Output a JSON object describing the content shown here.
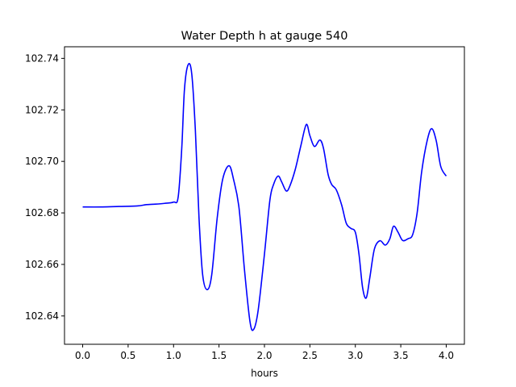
{
  "chart_data": {
    "type": "line",
    "title": "Water Depth h at gauge 540",
    "xlabel": "hours",
    "ylabel": "",
    "xlim": [
      -0.2,
      4.2
    ],
    "ylim": [
      102.629,
      102.7445
    ],
    "grid": false,
    "colors": {
      "line": "#0000ff",
      "axes": "#000000",
      "background": "#ffffff"
    },
    "xticks": [
      {
        "value": 0.0,
        "label": "0.0"
      },
      {
        "value": 0.5,
        "label": "0.5"
      },
      {
        "value": 1.0,
        "label": "1.0"
      },
      {
        "value": 1.5,
        "label": "1.5"
      },
      {
        "value": 2.0,
        "label": "2.0"
      },
      {
        "value": 2.5,
        "label": "2.5"
      },
      {
        "value": 3.0,
        "label": "3.0"
      },
      {
        "value": 3.5,
        "label": "3.5"
      },
      {
        "value": 4.0,
        "label": "4.0"
      }
    ],
    "yticks": [
      {
        "value": 102.64,
        "label": "102.64"
      },
      {
        "value": 102.66,
        "label": "102.66"
      },
      {
        "value": 102.68,
        "label": "102.68"
      },
      {
        "value": 102.7,
        "label": "102.70"
      },
      {
        "value": 102.72,
        "label": "102.72"
      },
      {
        "value": 102.74,
        "label": "102.74"
      }
    ],
    "series": [
      {
        "points": [
          [
            0.0,
            102.6823
          ],
          [
            0.2,
            102.6823
          ],
          [
            0.4,
            102.6825
          ],
          [
            0.6,
            102.6827
          ],
          [
            0.7,
            102.6832
          ],
          [
            0.8,
            102.6834
          ],
          [
            0.9,
            102.6837
          ],
          [
            1.0,
            102.6842
          ],
          [
            1.05,
            102.686
          ],
          [
            1.09,
            102.705
          ],
          [
            1.12,
            102.728
          ],
          [
            1.16,
            102.7375
          ],
          [
            1.2,
            102.734
          ],
          [
            1.24,
            102.712
          ],
          [
            1.28,
            102.678
          ],
          [
            1.32,
            102.656
          ],
          [
            1.37,
            102.6502
          ],
          [
            1.42,
            102.656
          ],
          [
            1.48,
            102.678
          ],
          [
            1.54,
            102.693
          ],
          [
            1.61,
            102.6983
          ],
          [
            1.66,
            102.693
          ],
          [
            1.72,
            102.682
          ],
          [
            1.78,
            102.658
          ],
          [
            1.84,
            102.638
          ],
          [
            1.88,
            102.6347
          ],
          [
            1.93,
            102.642
          ],
          [
            2.0,
            102.664
          ],
          [
            2.06,
            102.685
          ],
          [
            2.1,
            102.691
          ],
          [
            2.15,
            102.6943
          ],
          [
            2.19,
            102.692
          ],
          [
            2.24,
            102.6885
          ],
          [
            2.28,
            102.6905
          ],
          [
            2.34,
            102.697
          ],
          [
            2.4,
            102.706
          ],
          [
            2.46,
            102.7143
          ],
          [
            2.5,
            102.71
          ],
          [
            2.55,
            102.7058
          ],
          [
            2.61,
            102.7083
          ],
          [
            2.65,
            102.705
          ],
          [
            2.7,
            102.695
          ],
          [
            2.74,
            102.691
          ],
          [
            2.79,
            102.689
          ],
          [
            2.85,
            102.683
          ],
          [
            2.9,
            102.676
          ],
          [
            2.95,
            102.674
          ],
          [
            3.0,
            102.6725
          ],
          [
            3.04,
            102.664
          ],
          [
            3.08,
            102.651
          ],
          [
            3.12,
            102.647
          ],
          [
            3.16,
            102.655
          ],
          [
            3.21,
            102.666
          ],
          [
            3.27,
            102.6692
          ],
          [
            3.33,
            102.6675
          ],
          [
            3.38,
            102.67
          ],
          [
            3.42,
            102.6748
          ],
          [
            3.47,
            102.6725
          ],
          [
            3.52,
            102.6693
          ],
          [
            3.58,
            102.67
          ],
          [
            3.63,
            102.6715
          ],
          [
            3.68,
            102.68
          ],
          [
            3.73,
            102.696
          ],
          [
            3.79,
            102.708
          ],
          [
            3.84,
            102.7127
          ],
          [
            3.89,
            102.708
          ],
          [
            3.94,
            102.698
          ],
          [
            4.0,
            102.6943
          ]
        ]
      }
    ]
  }
}
